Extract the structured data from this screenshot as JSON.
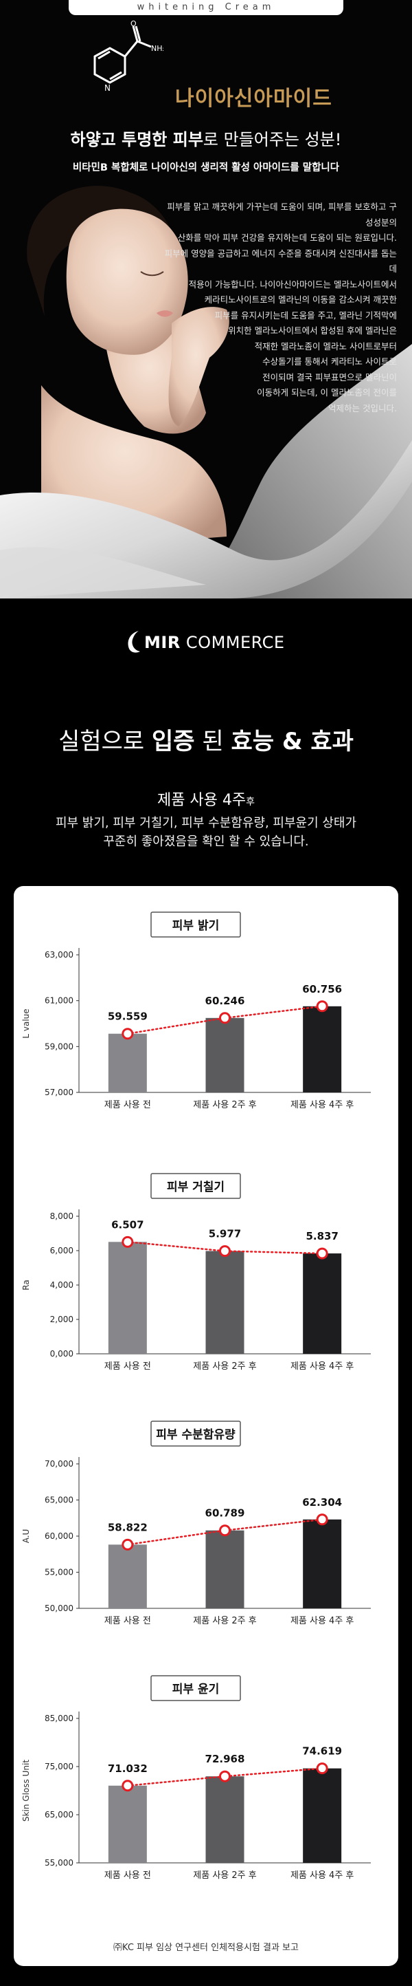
{
  "hero": {
    "tagline": "whitening Cream",
    "title": "나이아신아마이드",
    "subtitle_bold1": "하얗고 투명한 피부",
    "subtitle_rest": "로 만들어주는 성분!",
    "subtitle2": "비타민B 복합체로 나이아신의 생리적 활성 아마이드를 말합니다",
    "body_lines": [
      "피부를 맑고 깨끗하게 가꾸는데 도움이 되며, 피부를 보호하고 구성성분의",
      "산화를 막아 피부 건강을 유지하는데 도움이 되는 원료입니다.",
      "피부에 영양을 공급하고 에너지 수준을 증대시켜 신진대사를 돕는데",
      "적용이 가능합니다. 나이아신아마이드는 멜라노사이트에서",
      "케라티노사이트로의 멜라닌의 이동을 감소시켜 깨끗한",
      "피부를 유지시키는데 도움을 주고, 멜라닌 기적막에",
      "위치한 멜라노사이트에서 합성된 후에 멜라닌은",
      "적재한 멜라노좀이 멜라노 사이트로부터",
      "수상돌기를 통해서 케라티노 사이트로",
      "전이되며 결국 피부표면으로 멜라닌이",
      "이동하게 되는데, 이 멜라노좀의 전이를",
      "억제하는 것입니다."
    ]
  },
  "brand": {
    "name_bold": "MIR",
    "name_rest": " COMMERCE"
  },
  "section": {
    "title_pre": "실험으로 ",
    "title_b1": "입증",
    "title_mid": " 된 ",
    "title_b2": "효능 & 효과",
    "usage_main": "제품 사용 4주",
    "usage_small": "후",
    "desc_line1": "피부 밝기, 피부 거칠기, 피부 수분함유량, 피부윤기 상태가",
    "desc_line2": "꾸준히 좋아졌음을 확인 할 수 있습니다."
  },
  "footnote": "㈜KC 피부 임상 연구센터 인체적용시험 결과 보고",
  "colors": {
    "bars": [
      "#87868a",
      "#5b5a5d",
      "#1d1c1e"
    ],
    "trend": "#e51d23",
    "accent_gold": "#c79a55"
  },
  "chart_data": [
    {
      "type": "bar",
      "title": "피부 밝기",
      "ylabel": "L value",
      "categories": [
        "제품 사용 전",
        "제품 사용 2주 후",
        "제품 사용 4주 후"
      ],
      "values": [
        59.559,
        60.246,
        60.756
      ],
      "value_labels": [
        "59.559",
        "60.246",
        "60.756"
      ],
      "ylim": [
        57,
        63
      ],
      "yticks": [
        57,
        59,
        61,
        63
      ],
      "ytick_labels": [
        "57,000",
        "59,000",
        "61,000",
        "63,000"
      ],
      "grid": false
    },
    {
      "type": "bar",
      "title": "피부 거칠기",
      "ylabel": "Ra",
      "categories": [
        "제품 사용 전",
        "제품 사용 2주 후",
        "제품 사용 4주 후"
      ],
      "values": [
        6.507,
        5.977,
        5.837
      ],
      "value_labels": [
        "6.507",
        "5.977",
        "5.837"
      ],
      "ylim": [
        0,
        8
      ],
      "yticks": [
        0,
        2,
        4,
        6,
        8
      ],
      "ytick_labels": [
        "0,000",
        "2,000",
        "4,000",
        "6,000",
        "8,000"
      ],
      "grid": false
    },
    {
      "type": "bar",
      "title": "피부 수분함유량",
      "ylabel": "A.U",
      "categories": [
        "제품 사용 전",
        "제품 사용 2주 후",
        "제품 사용 4주 후"
      ],
      "values": [
        58.822,
        60.789,
        62.304
      ],
      "value_labels": [
        "58.822",
        "60.789",
        "62.304"
      ],
      "ylim": [
        50,
        70
      ],
      "yticks": [
        50,
        55,
        60,
        65,
        70
      ],
      "ytick_labels": [
        "50,000",
        "55,000",
        "60,000",
        "65,000",
        "70,000"
      ],
      "grid": false
    },
    {
      "type": "bar",
      "title": "피부 윤기",
      "ylabel": "Skin Gloss Unit",
      "categories": [
        "제품 사용 전",
        "제품 사용 2주 후",
        "제품 사용 4주 후"
      ],
      "values": [
        71.032,
        72.968,
        74.619
      ],
      "value_labels": [
        "71.032",
        "72.968",
        "74.619"
      ],
      "ylim": [
        55,
        85
      ],
      "yticks": [
        55,
        65,
        75,
        85
      ],
      "ytick_labels": [
        "55,000",
        "65,000",
        "75,000",
        "85,000"
      ],
      "grid": false
    }
  ]
}
